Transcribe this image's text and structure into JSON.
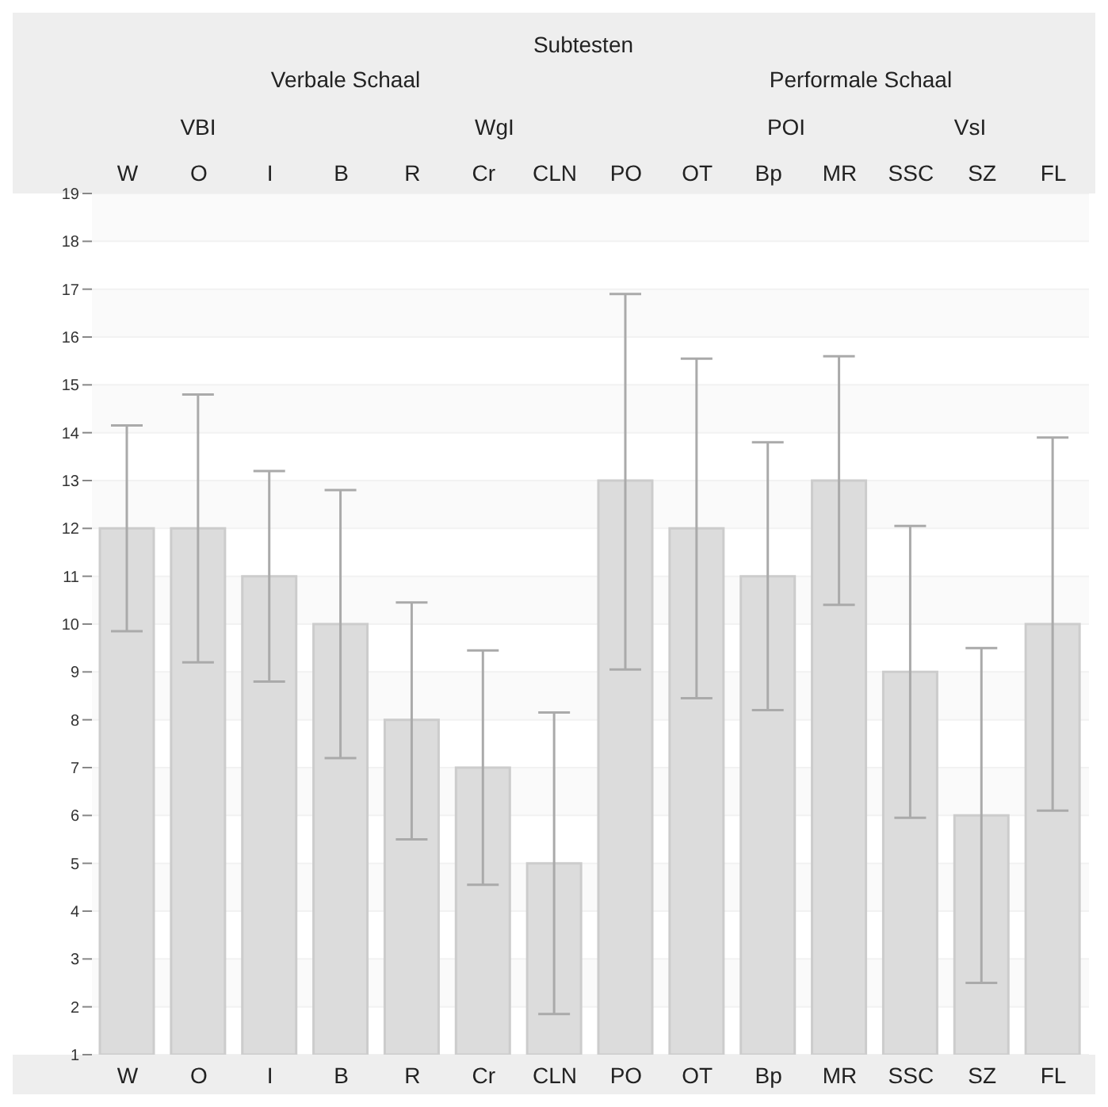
{
  "chart_data": {
    "type": "bar",
    "title": "Subtesten",
    "annotations": [
      "Verbale Schaal",
      "Performale Schaal",
      "VBI",
      "WgI",
      "POI",
      "VsI"
    ],
    "categories": [
      "W",
      "O",
      "I",
      "B",
      "R",
      "Cr",
      "CLN",
      "PO",
      "OT",
      "Bp",
      "MR",
      "SSC",
      "SZ",
      "FL"
    ],
    "values": [
      12,
      12,
      11,
      10,
      8,
      7,
      5,
      13,
      12,
      11,
      13,
      9,
      6,
      10
    ],
    "errors": [
      [
        9.85,
        14.15
      ],
      [
        9.2,
        14.8
      ],
      [
        8.8,
        13.2
      ],
      [
        7.2,
        12.8
      ],
      [
        5.5,
        10.45
      ],
      [
        4.55,
        9.45
      ],
      [
        1.85,
        8.15
      ],
      [
        9.05,
        16.9
      ],
      [
        8.45,
        15.55
      ],
      [
        8.2,
        13.8
      ],
      [
        10.4,
        15.6
      ],
      [
        5.95,
        12.05
      ],
      [
        2.5,
        9.5
      ],
      [
        6.1,
        13.9
      ]
    ],
    "color": "#dcdcdc",
    "ylim": [
      1,
      19
    ],
    "yticks": [
      1,
      2,
      3,
      4,
      5,
      6,
      7,
      8,
      9,
      10,
      11,
      12,
      13,
      14,
      15,
      16,
      17,
      18,
      19
    ],
    "grid": "y"
  }
}
